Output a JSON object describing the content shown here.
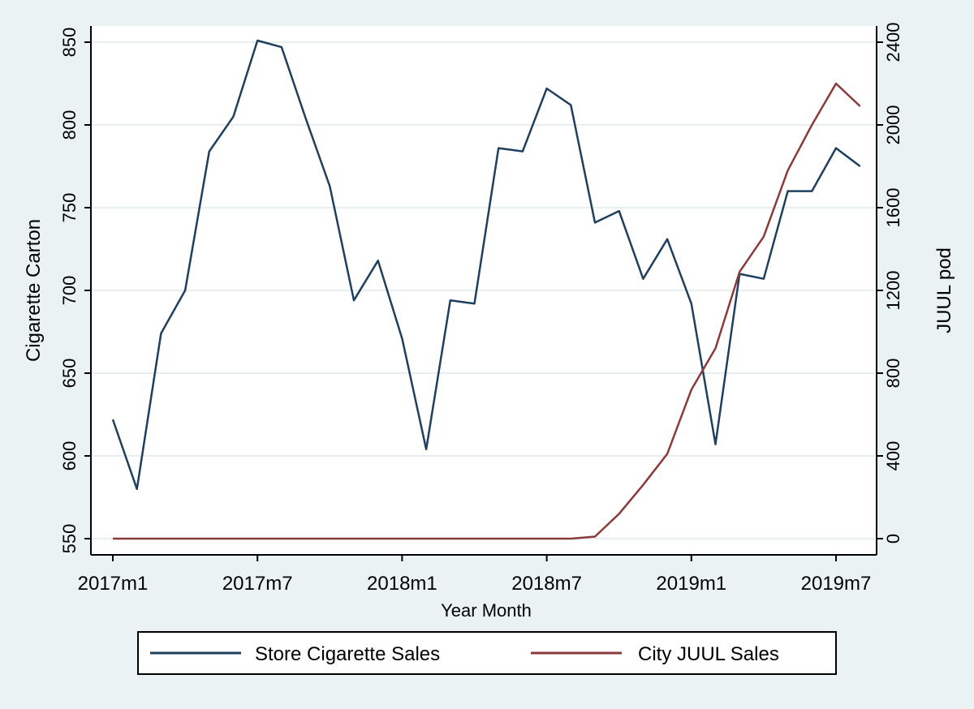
{
  "chart_data": {
    "type": "line",
    "xlabel": "Year Month",
    "ylabel_left": "Cigarette Carton",
    "ylabel_right": "JUUL pod",
    "ylim_left": [
      550,
      850
    ],
    "ylim_right": [
      0,
      2400
    ],
    "yticks_left": [
      550,
      600,
      650,
      700,
      750,
      800,
      850
    ],
    "yticks_right": [
      0,
      400,
      800,
      1200,
      1600,
      2000,
      2400
    ],
    "xticks": [
      {
        "index": 0,
        "label": "2017m1"
      },
      {
        "index": 6,
        "label": "2017m7"
      },
      {
        "index": 12,
        "label": "2018m1"
      },
      {
        "index": 18,
        "label": "2018m7"
      },
      {
        "index": 24,
        "label": "2019m1"
      },
      {
        "index": 30,
        "label": "2019m7"
      }
    ],
    "grid": true,
    "legend_position": "bottom",
    "series": [
      {
        "name": "Store Cigarette Sales",
        "axis": "left",
        "color": "#1f3f5f",
        "values": [
          622,
          580,
          674,
          700,
          784,
          805,
          851,
          847,
          804,
          763,
          694,
          718,
          671,
          604,
          694,
          692,
          786,
          784,
          822,
          812,
          741,
          748,
          707,
          731,
          692,
          607,
          710,
          707,
          760,
          760,
          786,
          775
        ]
      },
      {
        "name": "City JUUL Sales",
        "axis": "right",
        "color": "#8b3a3a",
        "values": [
          0,
          0,
          0,
          0,
          0,
          0,
          0,
          0,
          0,
          0,
          0,
          0,
          0,
          0,
          0,
          0,
          0,
          0,
          0,
          0,
          10,
          120,
          260,
          410,
          720,
          920,
          1290,
          1460,
          1780,
          2000,
          2200,
          2090
        ]
      }
    ]
  }
}
